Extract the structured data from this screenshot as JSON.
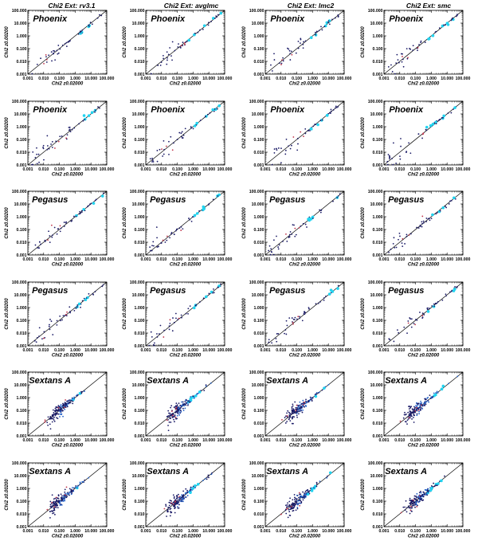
{
  "figure": {
    "column_titles": [
      "Chi2  Ext: rv3.1",
      "Chi2  Ext: avglmc",
      "Chi2  Ext: lmc2",
      "Chi2  Ext: smc"
    ],
    "colors": {
      "one_to_one_line": "#000000",
      "dark_points": "#1a1a66",
      "blue_points": "#1f5fc8",
      "cyan_points": "#22d4f0",
      "red_points": "#c0334a"
    }
  },
  "chart_data": [
    {
      "type": "scatter",
      "panel_label": "Phoenix",
      "xlabel": "Chi2 z0.02000",
      "ylabel": "Chi2 z0.00200",
      "log_scale": true,
      "xlim": [
        0.001,
        100
      ],
      "ylim": [
        0.001,
        100
      ],
      "ticks": [
        "0.001",
        "0.010",
        "0.100",
        "1.000",
        "10.000",
        "100.000"
      ],
      "one_to_one_line": true,
      "density": 1
    },
    {
      "type": "scatter",
      "panel_label": "Phoenix",
      "xlabel": "Chi2 z0.02000",
      "ylabel": "Chi2 z0.00200",
      "log_scale": true,
      "xlim": [
        0.001,
        100
      ],
      "ylim": [
        0.001,
        100
      ],
      "ticks": [
        "0.001",
        "0.010",
        "0.100",
        "1.000",
        "10.000",
        "100.000"
      ],
      "one_to_one_line": true,
      "density": 1
    },
    {
      "type": "scatter",
      "panel_label": "Phoenix",
      "xlabel": "Chi2 z0.02000",
      "ylabel": "Chi2 z0.00200",
      "log_scale": true,
      "xlim": [
        0.001,
        100
      ],
      "ylim": [
        0.001,
        100
      ],
      "ticks": [
        "0.001",
        "0.010",
        "0.100",
        "1.000",
        "10.000",
        "100.000"
      ],
      "one_to_one_line": true,
      "density": 1
    },
    {
      "type": "scatter",
      "panel_label": "Phoenix",
      "xlabel": "Chi2 z0.02000",
      "ylabel": "Chi2 z0.00200",
      "log_scale": true,
      "xlim": [
        0.001,
        100
      ],
      "ylim": [
        0.001,
        100
      ],
      "ticks": [
        "0.001",
        "0.010",
        "0.100",
        "1.000",
        "10.000",
        "100.000"
      ],
      "one_to_one_line": true,
      "density": 1
    },
    {
      "type": "scatter",
      "panel_label": "Phoenix",
      "xlabel": "Chi2 z0.02000",
      "ylabel": "Chi2 z0.00200",
      "log_scale": true,
      "xlim": [
        0.001,
        100
      ],
      "ylim": [
        0.001,
        100
      ],
      "ticks": [
        "0.001",
        "0.010",
        "0.100",
        "1.000",
        "10.000",
        "100.000"
      ],
      "one_to_one_line": true,
      "density": 1
    },
    {
      "type": "scatter",
      "panel_label": "Phoenix",
      "xlabel": "Chi2 z0.02000",
      "ylabel": "Chi2 z0.00200",
      "log_scale": true,
      "xlim": [
        0.001,
        100
      ],
      "ylim": [
        0.001,
        100
      ],
      "ticks": [
        "0.001",
        "0.010",
        "0.100",
        "1.000",
        "10.000",
        "100.000"
      ],
      "one_to_one_line": true,
      "density": 1
    },
    {
      "type": "scatter",
      "panel_label": "Phoenix",
      "xlabel": "Chi2 z0.02000",
      "ylabel": "Chi2 z0.00200",
      "log_scale": true,
      "xlim": [
        0.001,
        100
      ],
      "ylim": [
        0.001,
        100
      ],
      "ticks": [
        "0.001",
        "0.010",
        "0.100",
        "1.000",
        "10.000",
        "100.000"
      ],
      "one_to_one_line": true,
      "density": 1
    },
    {
      "type": "scatter",
      "panel_label": "Phoenix",
      "xlabel": "Chi2 z0.02000",
      "ylabel": "Chi2 z0.00200",
      "log_scale": true,
      "xlim": [
        0.001,
        100
      ],
      "ylim": [
        0.001,
        100
      ],
      "ticks": [
        "0.001",
        "0.010",
        "0.100",
        "1.000",
        "10.000",
        "100.000"
      ],
      "one_to_one_line": true,
      "density": 1
    },
    {
      "type": "scatter",
      "panel_label": "Pegasus",
      "xlabel": "Chi2 z0.02000",
      "ylabel": "Chi2 z0.00200",
      "log_scale": true,
      "xlim": [
        0.001,
        100
      ],
      "ylim": [
        0.001,
        100
      ],
      "ticks": [
        "0.001",
        "0.010",
        "0.100",
        "1.000",
        "10.000",
        "100.000"
      ],
      "one_to_one_line": true,
      "density": 1
    },
    {
      "type": "scatter",
      "panel_label": "Pegasus",
      "xlabel": "Chi2 z0.02000",
      "ylabel": "Chi2 z0.00200",
      "log_scale": true,
      "xlim": [
        0.001,
        100
      ],
      "ylim": [
        0.001,
        100
      ],
      "ticks": [
        "0.001",
        "0.010",
        "0.100",
        "1.000",
        "10.000",
        "100.000"
      ],
      "one_to_one_line": true,
      "density": 1
    },
    {
      "type": "scatter",
      "panel_label": "Pegasus",
      "xlabel": "Chi2 z0.02000",
      "ylabel": "Chi2 z0.00200",
      "log_scale": true,
      "xlim": [
        0.001,
        100
      ],
      "ylim": [
        0.001,
        100
      ],
      "ticks": [
        "0.001",
        "0.010",
        "0.100",
        "1.000",
        "10.000",
        "100.000"
      ],
      "one_to_one_line": true,
      "density": 1
    },
    {
      "type": "scatter",
      "panel_label": "Pegasus",
      "xlabel": "Chi2 z0.02000",
      "ylabel": "Chi2 z0.00200",
      "log_scale": true,
      "xlim": [
        0.001,
        100
      ],
      "ylim": [
        0.001,
        100
      ],
      "ticks": [
        "0.001",
        "0.010",
        "0.100",
        "1.000",
        "10.000",
        "100.000"
      ],
      "one_to_one_line": true,
      "density": 1
    },
    {
      "type": "scatter",
      "panel_label": "Pegasus",
      "xlabel": "Chi2 z0.02000",
      "ylabel": "Chi2 z0.00200",
      "log_scale": true,
      "xlim": [
        0.001,
        100
      ],
      "ylim": [
        0.001,
        100
      ],
      "ticks": [
        "0.001",
        "0.010",
        "0.100",
        "1.000",
        "10.000",
        "100.000"
      ],
      "one_to_one_line": true,
      "density": 1
    },
    {
      "type": "scatter",
      "panel_label": "Pegasus",
      "xlabel": "Chi2 z0.02000",
      "ylabel": "Chi2 z0.00200",
      "log_scale": true,
      "xlim": [
        0.001,
        100
      ],
      "ylim": [
        0.001,
        100
      ],
      "ticks": [
        "0.001",
        "0.010",
        "0.100",
        "1.000",
        "10.000",
        "100.000"
      ],
      "one_to_one_line": true,
      "density": 1
    },
    {
      "type": "scatter",
      "panel_label": "Pegasus",
      "xlabel": "Chi2 z0.02000",
      "ylabel": "Chi2 z0.00200",
      "log_scale": true,
      "xlim": [
        0.001,
        100
      ],
      "ylim": [
        0.001,
        100
      ],
      "ticks": [
        "0.001",
        "0.010",
        "0.100",
        "1.000",
        "10.000",
        "100.000"
      ],
      "one_to_one_line": true,
      "density": 1
    },
    {
      "type": "scatter",
      "panel_label": "Pegasus",
      "xlabel": "Chi2 z0.02000",
      "ylabel": "Chi2 z0.00200",
      "log_scale": true,
      "xlim": [
        0.001,
        100
      ],
      "ylim": [
        0.001,
        100
      ],
      "ticks": [
        "0.001",
        "0.010",
        "0.100",
        "1.000",
        "10.000",
        "100.000"
      ],
      "one_to_one_line": true,
      "density": 1
    },
    {
      "type": "scatter",
      "panel_label": "Sextans A",
      "xlabel": "Chi2 z0.02000",
      "ylabel": "Chi2 z0.00200",
      "log_scale": true,
      "xlim": [
        0.001,
        100
      ],
      "ylim": [
        0.001,
        100
      ],
      "ticks": [
        "0.001",
        "0.010",
        "0.100",
        "1.000",
        "10.000",
        "100.000"
      ],
      "one_to_one_line": true,
      "density": 4
    },
    {
      "type": "scatter",
      "panel_label": "Sextans A",
      "xlabel": "Chi2 z0.02000",
      "ylabel": "Chi2 z0.00200",
      "log_scale": true,
      "xlim": [
        0.001,
        100
      ],
      "ylim": [
        0.001,
        100
      ],
      "ticks": [
        "0.001",
        "0.010",
        "0.100",
        "1.000",
        "10.000",
        "100.000"
      ],
      "one_to_one_line": true,
      "density": 4
    },
    {
      "type": "scatter",
      "panel_label": "Sextans A",
      "xlabel": "Chi2 z0.02000",
      "ylabel": "Chi2 z0.00200",
      "log_scale": true,
      "xlim": [
        0.001,
        100
      ],
      "ylim": [
        0.001,
        100
      ],
      "ticks": [
        "0.001",
        "0.010",
        "0.100",
        "1.000",
        "10.000",
        "100.000"
      ],
      "one_to_one_line": true,
      "density": 4
    },
    {
      "type": "scatter",
      "panel_label": "Sextans A",
      "xlabel": "Chi2 z0.02000",
      "ylabel": "Chi2 z0.00200",
      "log_scale": true,
      "xlim": [
        0.001,
        100
      ],
      "ylim": [
        0.001,
        100
      ],
      "ticks": [
        "0.001",
        "0.010",
        "0.100",
        "1.000",
        "10.000",
        "100.000"
      ],
      "one_to_one_line": true,
      "density": 4
    },
    {
      "type": "scatter",
      "panel_label": "Sextans A",
      "xlabel": "Chi2 z0.02000",
      "ylabel": "Chi2 z0.00200",
      "log_scale": true,
      "xlim": [
        0.001,
        100
      ],
      "ylim": [
        0.001,
        100
      ],
      "ticks": [
        "0.001",
        "0.010",
        "0.100",
        "1.000",
        "10.000",
        "100.000"
      ],
      "one_to_one_line": true,
      "density": 4
    },
    {
      "type": "scatter",
      "panel_label": "Sextans A",
      "xlabel": "Chi2 z0.02000",
      "ylabel": "Chi2 z0.00200",
      "log_scale": true,
      "xlim": [
        0.001,
        100
      ],
      "ylim": [
        0.001,
        100
      ],
      "ticks": [
        "0.001",
        "0.010",
        "0.100",
        "1.000",
        "10.000",
        "100.000"
      ],
      "one_to_one_line": true,
      "density": 4
    },
    {
      "type": "scatter",
      "panel_label": "Sextans A",
      "xlabel": "Chi2 z0.02000",
      "ylabel": "Chi2 z0.00200",
      "log_scale": true,
      "xlim": [
        0.001,
        100
      ],
      "ylim": [
        0.001,
        100
      ],
      "ticks": [
        "0.001",
        "0.010",
        "0.100",
        "1.000",
        "10.000",
        "100.000"
      ],
      "one_to_one_line": true,
      "density": 4
    },
    {
      "type": "scatter",
      "panel_label": "Sextans A",
      "xlabel": "Chi2 z0.02000",
      "ylabel": "Chi2 z0.00200",
      "log_scale": true,
      "xlim": [
        0.001,
        100
      ],
      "ylim": [
        0.001,
        100
      ],
      "ticks": [
        "0.001",
        "0.010",
        "0.100",
        "1.000",
        "10.000",
        "100.000"
      ],
      "one_to_one_line": true,
      "density": 4
    }
  ]
}
